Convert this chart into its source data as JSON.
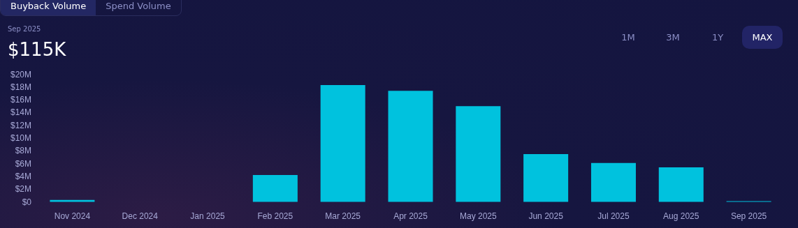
{
  "chart_data": {
    "type": "bar",
    "title": "$115K",
    "subtitle": "Sep 2025",
    "annotations": [
      "Buyback Volume",
      "Spend Volume",
      "1M",
      "3M",
      "1Y",
      "MAX"
    ],
    "categories": [
      "Nov 2024",
      "Dec 2024",
      "Jan 2025",
      "Feb 2025",
      "Mar 2025",
      "Apr 2025",
      "May 2025",
      "Jun 2025",
      "Jul 2025",
      "Aug 2025",
      "Sep 2025"
    ],
    "values": [
      0.3,
      0,
      0,
      4.2,
      18.3,
      17.4,
      15.0,
      7.5,
      6.1,
      5.4,
      0.115
    ],
    "color": "#00c2de",
    "ylim": [
      0,
      20
    ],
    "yticks": [
      {
        "value": 0,
        "label": "$0"
      },
      {
        "value": 2,
        "label": "$2M"
      },
      {
        "value": 4,
        "label": "$4M"
      },
      {
        "value": 6,
        "label": "$6M"
      },
      {
        "value": 8,
        "label": "$8M"
      },
      {
        "value": 10,
        "label": "$10M"
      },
      {
        "value": 12,
        "label": "$12M"
      },
      {
        "value": 14,
        "label": "$14M"
      },
      {
        "value": 16,
        "label": "$16M"
      },
      {
        "value": 18,
        "label": "$18M"
      },
      {
        "value": 20,
        "label": "$20M"
      }
    ],
    "grid": false
  }
}
